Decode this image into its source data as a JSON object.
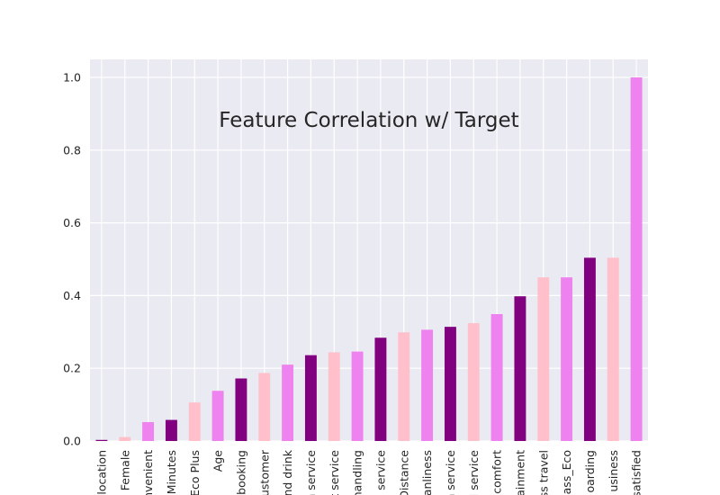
{
  "chart_data": {
    "type": "bar",
    "title": "Feature Correlation w/ Target",
    "xlabel": "",
    "ylabel": "",
    "ylim": [
      0,
      1.05
    ],
    "y_ticks": [
      0.0,
      0.2,
      0.4,
      0.6,
      0.8,
      1.0
    ],
    "y_tick_labels": [
      "0.0",
      "0.2",
      "0.4",
      "0.6",
      "0.8",
      "1.0"
    ],
    "grid": true,
    "legend": "none",
    "bar_colors": [
      "#800080",
      "#ffc0cb",
      "#ee82ee"
    ],
    "categories": [
      "location",
      "Female",
      "nvenient",
      "Minutes",
      "Eco Plus",
      "Age",
      "booking",
      "ustomer",
      "nd drink",
      "n service",
      "t service",
      "handling",
      "i service",
      "Distance",
      "anliness",
      "n service",
      "l service",
      "comfort",
      "ainment",
      "ss travel",
      "ass_Eco",
      "oarding",
      "usiness",
      "satisfied"
    ],
    "values": [
      0.003,
      0.011,
      0.052,
      0.058,
      0.106,
      0.138,
      0.172,
      0.187,
      0.21,
      0.236,
      0.244,
      0.246,
      0.284,
      0.299,
      0.306,
      0.314,
      0.324,
      0.349,
      0.398,
      0.45,
      0.45,
      0.504,
      0.504,
      1.0
    ]
  }
}
